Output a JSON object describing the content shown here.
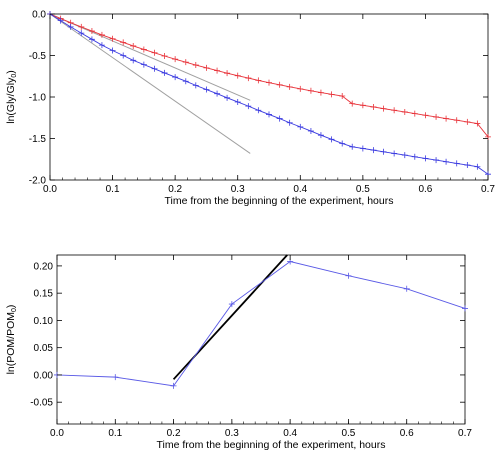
{
  "chart_data": [
    {
      "type": "line",
      "xlabel": "Time from the beginning of the experiment, hours",
      "ylabel_main": "ln(Gly/Gly",
      "ylabel_sub": "0",
      "ylabel_end": ")",
      "xlim": [
        0.0,
        0.7
      ],
      "ylim": [
        -2.0,
        0.0
      ],
      "xticks": [
        0.0,
        0.1,
        0.2,
        0.3,
        0.4,
        0.5,
        0.6,
        0.7
      ],
      "xtick_labels": [
        "0.0",
        "0.1",
        "0.2",
        "0.3",
        "0.4",
        "0.5",
        "0.6",
        "0.7"
      ],
      "yticks": [
        0.0,
        -0.5,
        -1.0,
        -1.5,
        -2.0
      ],
      "ytick_labels": [
        "0.0",
        "-0.5",
        "-1.0",
        "-1.5",
        "-2.0"
      ],
      "series": [
        {
          "color": "#e8333a",
          "marker": "plus",
          "x": [
            0.0,
            0.017,
            0.033,
            0.05,
            0.067,
            0.083,
            0.1,
            0.117,
            0.133,
            0.15,
            0.167,
            0.183,
            0.2,
            0.217,
            0.233,
            0.25,
            0.267,
            0.283,
            0.3,
            0.317,
            0.333,
            0.35,
            0.367,
            0.383,
            0.4,
            0.417,
            0.433,
            0.45,
            0.467,
            0.483,
            0.5,
            0.517,
            0.533,
            0.55,
            0.567,
            0.583,
            0.6,
            0.617,
            0.633,
            0.65,
            0.667,
            0.683,
            0.7
          ],
          "y": [
            0.0,
            -0.055,
            -0.105,
            -0.155,
            -0.205,
            -0.252,
            -0.298,
            -0.342,
            -0.385,
            -0.427,
            -0.467,
            -0.506,
            -0.544,
            -0.58,
            -0.615,
            -0.649,
            -0.682,
            -0.713,
            -0.743,
            -0.772,
            -0.8,
            -0.827,
            -0.853,
            -0.878,
            -0.902,
            -0.925,
            -0.947,
            -0.968,
            -0.988,
            -1.08,
            -1.1,
            -1.12,
            -1.14,
            -1.16,
            -1.18,
            -1.2,
            -1.22,
            -1.24,
            -1.26,
            -1.28,
            -1.3,
            -1.32,
            -1.48
          ]
        },
        {
          "color": "#3a3ae0",
          "marker": "plus",
          "x": [
            0.0,
            0.017,
            0.033,
            0.05,
            0.067,
            0.083,
            0.1,
            0.117,
            0.133,
            0.15,
            0.167,
            0.183,
            0.2,
            0.217,
            0.233,
            0.25,
            0.267,
            0.283,
            0.3,
            0.317,
            0.333,
            0.35,
            0.367,
            0.383,
            0.4,
            0.417,
            0.433,
            0.45,
            0.467,
            0.483,
            0.5,
            0.517,
            0.533,
            0.55,
            0.567,
            0.583,
            0.6,
            0.617,
            0.633,
            0.65,
            0.667,
            0.683,
            0.7
          ],
          "y": [
            0.0,
            -0.08,
            -0.155,
            -0.23,
            -0.305,
            -0.375,
            -0.44,
            -0.5,
            -0.558,
            -0.61,
            -0.66,
            -0.71,
            -0.76,
            -0.81,
            -0.86,
            -0.91,
            -0.96,
            -1.01,
            -1.06,
            -1.11,
            -1.16,
            -1.21,
            -1.26,
            -1.31,
            -1.36,
            -1.41,
            -1.46,
            -1.51,
            -1.56,
            -1.6,
            -1.62,
            -1.64,
            -1.66,
            -1.68,
            -1.7,
            -1.72,
            -1.74,
            -1.76,
            -1.78,
            -1.8,
            -1.82,
            -1.84,
            -1.93
          ]
        }
      ],
      "reference_lines": [
        {
          "color": "#a0a0a0",
          "x": [
            0.0,
            0.32
          ],
          "y": [
            0.0,
            -1.04
          ]
        },
        {
          "color": "#a0a0a0",
          "x": [
            0.0,
            0.32
          ],
          "y": [
            0.0,
            -1.68
          ]
        }
      ]
    },
    {
      "type": "line",
      "xlabel": "Time from the beginning of the experiment, hours",
      "ylabel_main": "ln(POM/POM",
      "ylabel_sub": "0",
      "ylabel_end": ")",
      "xlim": [
        0.0,
        0.7
      ],
      "ylim": [
        -0.09,
        0.22
      ],
      "xticks": [
        0.0,
        0.1,
        0.2,
        0.3,
        0.4,
        0.5,
        0.6,
        0.7
      ],
      "xtick_labels": [
        "0.0",
        "0.1",
        "0.2",
        "0.3",
        "0.4",
        "0.5",
        "0.6",
        "0.7"
      ],
      "yticks": [
        0.2,
        0.15,
        0.1,
        0.05,
        0.0,
        -0.05
      ],
      "ytick_labels": [
        "0.20",
        "0.15",
        "0.10",
        "0.05",
        "0.00",
        "-0.05"
      ],
      "series": [
        {
          "color": "#5a5ae6",
          "marker": "plus",
          "x": [
            0.0,
            0.1,
            0.2,
            0.3,
            0.4,
            0.5,
            0.6,
            0.7
          ],
          "y": [
            0.0,
            -0.004,
            -0.02,
            0.13,
            0.208,
            0.182,
            0.158,
            0.122
          ]
        }
      ],
      "reference_lines": [
        {
          "color": "#000000",
          "x": [
            0.2,
            0.395
          ],
          "y": [
            -0.008,
            0.22
          ]
        }
      ]
    }
  ]
}
